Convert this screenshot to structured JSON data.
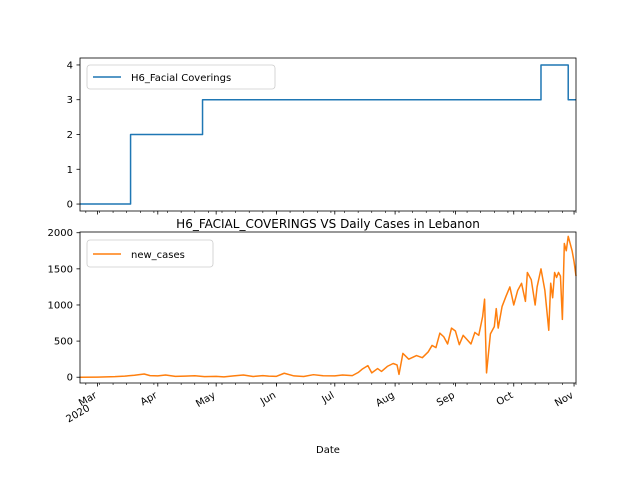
{
  "chart_data": [
    {
      "type": "line",
      "title": "",
      "xlabel": "",
      "ylabel": "",
      "ylim": [
        -0.2,
        4.2
      ],
      "yticks": [
        "0",
        "1",
        "2",
        "3",
        "4"
      ],
      "legend_position": "upper-left",
      "grid": false,
      "series": [
        {
          "name": "H6_Facial Coverings",
          "color": "#1f77b4",
          "x": [
            "2020-02-21",
            "2020-03-18",
            "2020-03-18",
            "2020-04-24",
            "2020-04-24",
            "2020-10-15",
            "2020-10-15",
            "2020-10-29",
            "2020-10-29",
            "2020-11-02"
          ],
          "values": [
            0,
            0,
            2,
            2,
            3,
            3,
            4,
            4,
            3,
            3
          ]
        }
      ]
    },
    {
      "type": "line",
      "title": "H6_FACIAL_COVERINGS VS Daily Cases in Lebanon",
      "xlabel": "Date",
      "ylabel": "",
      "ylim": [
        -80,
        2010
      ],
      "yticks": [
        "0",
        "500",
        "1000",
        "1500",
        "2000"
      ],
      "legend_position": "upper-left",
      "grid": false,
      "xtick_labels": [
        {
          "date": "2020-03-01",
          "label": "Mar",
          "sub": "2020"
        },
        {
          "date": "2020-04-01",
          "label": "Apr",
          "sub": ""
        },
        {
          "date": "2020-05-01",
          "label": "May",
          "sub": ""
        },
        {
          "date": "2020-06-01",
          "label": "Jun",
          "sub": ""
        },
        {
          "date": "2020-07-01",
          "label": "Jul",
          "sub": ""
        },
        {
          "date": "2020-08-01",
          "label": "Aug",
          "sub": ""
        },
        {
          "date": "2020-09-01",
          "label": "Sep",
          "sub": ""
        },
        {
          "date": "2020-10-01",
          "label": "Oct",
          "sub": ""
        },
        {
          "date": "2020-11-01",
          "label": "Nov",
          "sub": ""
        }
      ],
      "series": [
        {
          "name": "new_cases",
          "color": "#ff7f0e",
          "x": [
            "2020-02-21",
            "2020-03-01",
            "2020-03-10",
            "2020-03-15",
            "2020-03-20",
            "2020-03-25",
            "2020-03-28",
            "2020-04-01",
            "2020-04-05",
            "2020-04-10",
            "2020-04-15",
            "2020-04-20",
            "2020-04-25",
            "2020-05-01",
            "2020-05-05",
            "2020-05-10",
            "2020-05-15",
            "2020-05-20",
            "2020-05-25",
            "2020-05-28",
            "2020-06-01",
            "2020-06-05",
            "2020-06-10",
            "2020-06-15",
            "2020-06-20",
            "2020-06-25",
            "2020-07-01",
            "2020-07-05",
            "2020-07-10",
            "2020-07-13",
            "2020-07-15",
            "2020-07-18",
            "2020-07-20",
            "2020-07-23",
            "2020-07-25",
            "2020-07-28",
            "2020-07-31",
            "2020-08-02",
            "2020-08-03",
            "2020-08-05",
            "2020-08-08",
            "2020-08-12",
            "2020-08-15",
            "2020-08-18",
            "2020-08-20",
            "2020-08-22",
            "2020-08-24",
            "2020-08-26",
            "2020-08-28",
            "2020-08-30",
            "2020-09-01",
            "2020-09-03",
            "2020-09-05",
            "2020-09-07",
            "2020-09-09",
            "2020-09-11",
            "2020-09-13",
            "2020-09-15",
            "2020-09-16",
            "2020-09-17",
            "2020-09-19",
            "2020-09-21",
            "2020-09-22",
            "2020-09-23",
            "2020-09-25",
            "2020-09-27",
            "2020-09-29",
            "2020-10-01",
            "2020-10-03",
            "2020-10-05",
            "2020-10-07",
            "2020-10-08",
            "2020-10-10",
            "2020-10-12",
            "2020-10-13",
            "2020-10-15",
            "2020-10-17",
            "2020-10-19",
            "2020-10-20",
            "2020-10-21",
            "2020-10-22",
            "2020-10-23",
            "2020-10-24",
            "2020-10-25",
            "2020-10-26",
            "2020-10-27",
            "2020-10-28",
            "2020-10-29",
            "2020-10-30",
            "2020-10-31",
            "2020-11-01",
            "2020-11-02"
          ],
          "values": [
            0,
            2,
            8,
            15,
            28,
            45,
            22,
            18,
            30,
            12,
            15,
            20,
            8,
            12,
            5,
            18,
            30,
            10,
            22,
            15,
            12,
            55,
            18,
            10,
            35,
            20,
            18,
            30,
            22,
            65,
            110,
            160,
            60,
            120,
            80,
            150,
            190,
            170,
            40,
            330,
            250,
            300,
            270,
            350,
            440,
            410,
            610,
            560,
            460,
            680,
            640,
            450,
            580,
            520,
            460,
            620,
            580,
            840,
            1080,
            60,
            600,
            700,
            950,
            680,
            980,
            1120,
            1250,
            1000,
            1200,
            1300,
            1050,
            1450,
            1350,
            1000,
            1250,
            1500,
            1200,
            650,
            1300,
            1100,
            1450,
            1380,
            1450,
            1400,
            800,
            1850,
            1750,
            1950,
            1850,
            1750,
            1600,
            1400
          ]
        }
      ]
    }
  ]
}
